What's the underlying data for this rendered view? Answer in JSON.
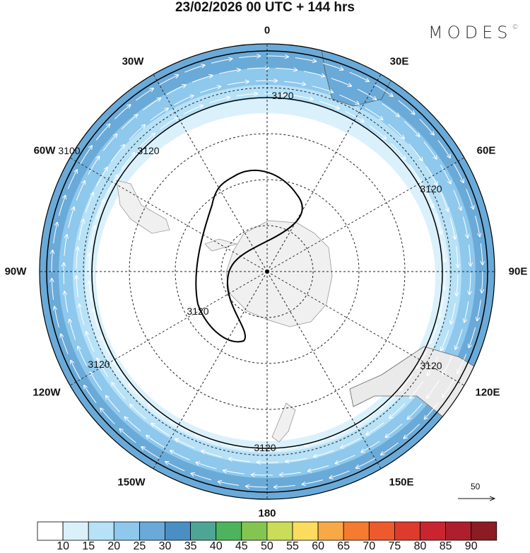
{
  "title": "23/02/2026  00 UTC  + 144 hrs",
  "logo": {
    "text": "MODES",
    "mark": "©"
  },
  "longitude_labels": [
    "0",
    "30E",
    "60E",
    "90E",
    "120E",
    "150E",
    "180",
    "150W",
    "120W",
    "90W",
    "60W",
    "30W"
  ],
  "vector_reference": "50",
  "contour_labels": [
    "3120",
    "3120",
    "3120",
    "3120",
    "3120",
    "3120",
    "3120",
    "3100"
  ],
  "colors": {
    "band_25_30": "#6aaad8",
    "band_20_25": "#8ec8ec",
    "band_15_20": "#b6e1f7",
    "band_10_15": "#daf1fc",
    "land": "#f0f0f0"
  },
  "chart_data": {
    "type": "heatmap",
    "projection": "south polar stereographic",
    "variable": "wind speed with streamline vectors and geopotential height contours",
    "colorbar": {
      "levels": [
        10,
        15,
        20,
        25,
        30,
        35,
        40,
        45,
        50,
        55,
        60,
        65,
        70,
        75,
        80,
        85,
        90
      ],
      "colors": [
        "#ffffff",
        "#daf1fc",
        "#b6e1f7",
        "#8ec8ec",
        "#6aaad8",
        "#4a8fc4",
        "#4ea596",
        "#4db35c",
        "#84c552",
        "#cbdc5a",
        "#fbdc5e",
        "#f8a946",
        "#f47b2f",
        "#ec5a2e",
        "#de3b2c",
        "#c82530",
        "#ad1f2c",
        "#8c1b24"
      ]
    },
    "contours": [
      {
        "value": 3120,
        "kind": "dashed/solid ring and closed polar loop"
      },
      {
        "value": 3100,
        "kind": "solid outer ring"
      }
    ],
    "reference_vector": 50
  }
}
